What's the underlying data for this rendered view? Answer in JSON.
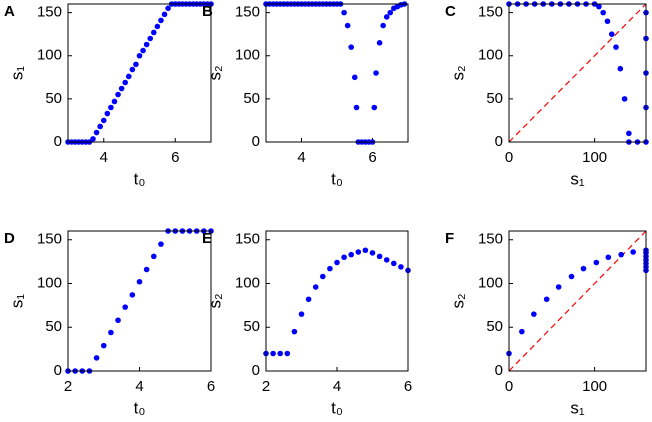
{
  "chart_data": [
    {
      "type": "scatter",
      "panel_label": "A",
      "xlabel": "t₀",
      "ylabel": "s₁",
      "color": "#0000ff",
      "x": [
        3.0,
        3.1,
        3.2,
        3.3,
        3.4,
        3.5,
        3.6,
        3.7,
        3.8,
        3.9,
        4.0,
        4.1,
        4.2,
        4.3,
        4.4,
        4.5,
        4.6,
        4.7,
        4.8,
        4.9,
        5.0,
        5.1,
        5.2,
        5.3,
        5.4,
        5.5,
        5.6,
        5.7,
        5.8,
        5.9,
        6.0,
        6.1,
        6.2,
        6.3,
        6.4,
        6.5,
        6.6,
        6.7,
        6.8,
        6.9,
        7.0
      ],
      "values": [
        0,
        0,
        0,
        0,
        0,
        0,
        0,
        3.6,
        11,
        18,
        25,
        33,
        40,
        47,
        55,
        62,
        69,
        76,
        84,
        90,
        100,
        106,
        113,
        120,
        127,
        134,
        141,
        148,
        155,
        160,
        160,
        160,
        160,
        160,
        160,
        160,
        160,
        160,
        160,
        160,
        160
      ],
      "xlim": [
        3,
        7
      ],
      "ylim": [
        0,
        160
      ],
      "xticks": [
        4,
        6
      ],
      "yticks": [
        0,
        50,
        100,
        150
      ]
    },
    {
      "type": "scatter",
      "panel_label": "B",
      "xlabel": "t₀",
      "ylabel": "s₂",
      "color": "#0000ff",
      "x": [
        3.0,
        3.1,
        3.2,
        3.3,
        3.4,
        3.5,
        3.6,
        3.7,
        3.8,
        3.9,
        4.0,
        4.1,
        4.2,
        4.3,
        4.4,
        4.5,
        4.6,
        4.7,
        4.8,
        4.9,
        5.0,
        5.1,
        5.2,
        5.3,
        5.4,
        5.5,
        5.55,
        5.6,
        5.7,
        5.8,
        5.9,
        6.0,
        6.05,
        6.1,
        6.2,
        6.3,
        6.4,
        6.5,
        6.6,
        6.7,
        6.8,
        6.9
      ],
      "values": [
        160,
        160,
        160,
        160,
        160,
        160,
        160,
        160,
        160,
        160,
        160,
        160,
        160,
        160,
        160,
        160,
        160,
        160,
        160,
        160,
        160,
        160,
        150,
        135,
        110,
        75,
        40,
        0,
        0,
        0,
        0,
        0,
        40,
        80,
        115,
        135,
        145,
        150,
        155,
        157,
        159,
        160
      ],
      "xlim": [
        3,
        7
      ],
      "ylim": [
        0,
        160
      ],
      "xticks": [
        4,
        6
      ],
      "yticks": [
        0,
        50,
        100,
        150
      ]
    },
    {
      "type": "scatter",
      "panel_label": "C",
      "xlabel": "s₁",
      "ylabel": "s₂",
      "color": "#0000ff",
      "diagonal": true,
      "x": [
        0,
        10,
        20,
        30,
        40,
        50,
        60,
        70,
        80,
        90,
        100,
        105,
        110,
        115,
        120,
        125,
        130,
        135,
        140,
        140,
        150,
        160,
        160,
        160,
        160,
        160
      ],
      "values": [
        160,
        160,
        160,
        160,
        160,
        160,
        160,
        160,
        160,
        160,
        160,
        157,
        150,
        140,
        125,
        110,
        85,
        50,
        10,
        0,
        0,
        0,
        40,
        80,
        120,
        150
      ],
      "xlim": [
        0,
        160
      ],
      "ylim": [
        0,
        160
      ],
      "xticks": [
        0,
        100
      ],
      "yticks": [
        0,
        50,
        100,
        150
      ]
    },
    {
      "type": "scatter",
      "panel_label": "D",
      "xlabel": "t₀",
      "ylabel": "s₁",
      "color": "#0000ff",
      "x": [
        2.0,
        2.2,
        2.4,
        2.6,
        2.8,
        3.0,
        3.2,
        3.4,
        3.6,
        3.8,
        4.0,
        4.2,
        4.4,
        4.6,
        4.8,
        5.0,
        5.2,
        5.4,
        5.6,
        5.8,
        6.0
      ],
      "values": [
        0,
        0,
        0,
        0,
        15,
        29,
        44,
        58,
        73,
        87,
        102,
        116,
        131,
        145,
        160,
        160,
        160,
        160,
        160,
        160,
        160
      ],
      "xlim": [
        2,
        6
      ],
      "ylim": [
        0,
        160
      ],
      "xticks": [
        2,
        4,
        6
      ],
      "yticks": [
        0,
        50,
        100,
        150
      ]
    },
    {
      "type": "scatter",
      "panel_label": "E",
      "xlabel": "t₀",
      "ylabel": "s₂",
      "color": "#0000ff",
      "x": [
        2.0,
        2.2,
        2.4,
        2.6,
        2.8,
        3.0,
        3.2,
        3.4,
        3.6,
        3.8,
        4.0,
        4.2,
        4.4,
        4.6,
        4.8,
        5.0,
        5.2,
        5.4,
        5.6,
        5.8,
        6.0
      ],
      "values": [
        20,
        20,
        20,
        20,
        45,
        65,
        82,
        96,
        108,
        117,
        124,
        130,
        133,
        136,
        138,
        135,
        131,
        127,
        123,
        119,
        115
      ],
      "xlim": [
        2,
        6
      ],
      "ylim": [
        0,
        160
      ],
      "xticks": [
        2,
        4,
        6
      ],
      "yticks": [
        0,
        50,
        100,
        150
      ]
    },
    {
      "type": "scatter",
      "panel_label": "F",
      "xlabel": "s₁",
      "ylabel": "s₂",
      "color": "#0000ff",
      "diagonal": true,
      "x": [
        0,
        15,
        29,
        44,
        58,
        73,
        87,
        102,
        116,
        131,
        145,
        160,
        160,
        160,
        160,
        160,
        160,
        160
      ],
      "values": [
        20,
        45,
        65,
        82,
        96,
        108,
        117,
        124,
        130,
        133,
        136,
        138,
        135,
        131,
        127,
        123,
        119,
        115
      ],
      "xlim": [
        0,
        160
      ],
      "ylim": [
        0,
        160
      ],
      "xticks": [
        0,
        100
      ],
      "yticks": [
        0,
        50,
        100,
        150
      ]
    }
  ]
}
